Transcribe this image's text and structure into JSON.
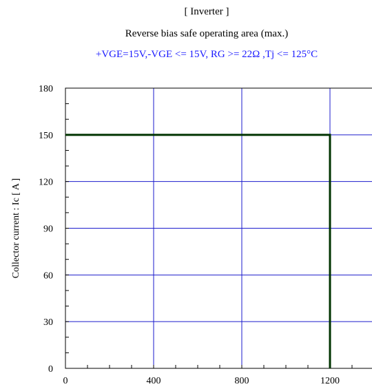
{
  "chart_data": {
    "type": "line",
    "title": "[ Inverter ]",
    "subtitle": "Reverse bias safe operating area (max.)",
    "conditions": "+VGE=15V,-VGE <= 15V, RG >= 22Ω ,Tj <= 125°C",
    "xlabel": "",
    "ylabel": "Collector current : Ic [ A ]",
    "xlim": [
      0,
      1500
    ],
    "ylim": [
      0,
      180
    ],
    "xticks": [
      0,
      400,
      800,
      1200
    ],
    "yticks": [
      0,
      30,
      60,
      90,
      120,
      150,
      180
    ],
    "grid": true,
    "series": [
      {
        "x": [
          0,
          1200,
          1200
        ],
        "y": [
          150,
          150,
          0
        ]
      }
    ],
    "colors": {
      "grid": "#1a1acc",
      "line": "#003300",
      "conditions": "#1a1aff"
    }
  }
}
